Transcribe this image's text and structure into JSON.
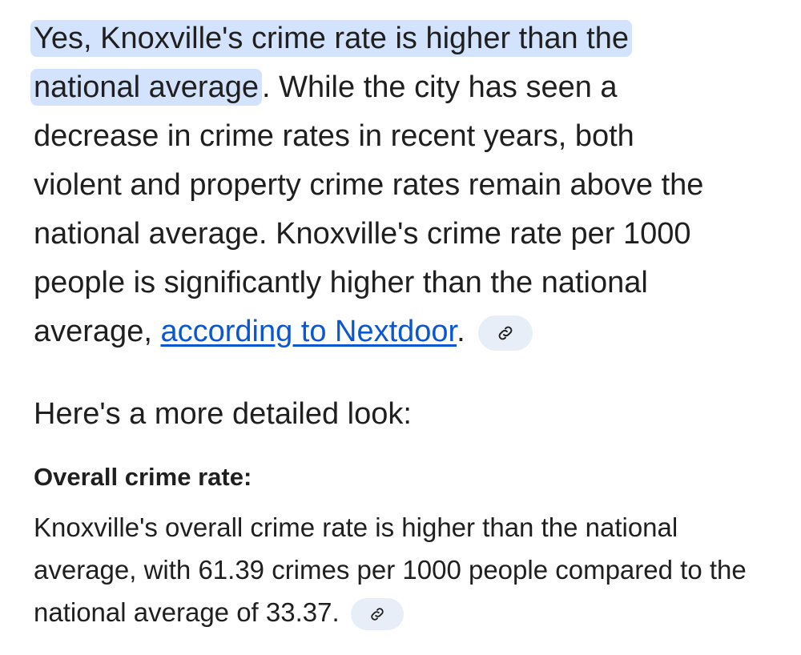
{
  "intro": {
    "highlight": "Yes, Knoxville's crime rate is higher than the national average",
    "text": ". While the city has seen a decrease in crime rates in recent years, both violent and property crime rates remain above the national average. Knoxville's crime rate per 1000 people is significantly higher than the national average, ",
    "link": "according to Nextdoor",
    "end": "."
  },
  "lead": "Here's a more detailed look:",
  "section": {
    "heading": "Overall crime rate:",
    "body": "Knoxville's overall crime rate is higher than the national average, with 61.39 crimes per 1000 people compared to the national average of 33.37."
  }
}
